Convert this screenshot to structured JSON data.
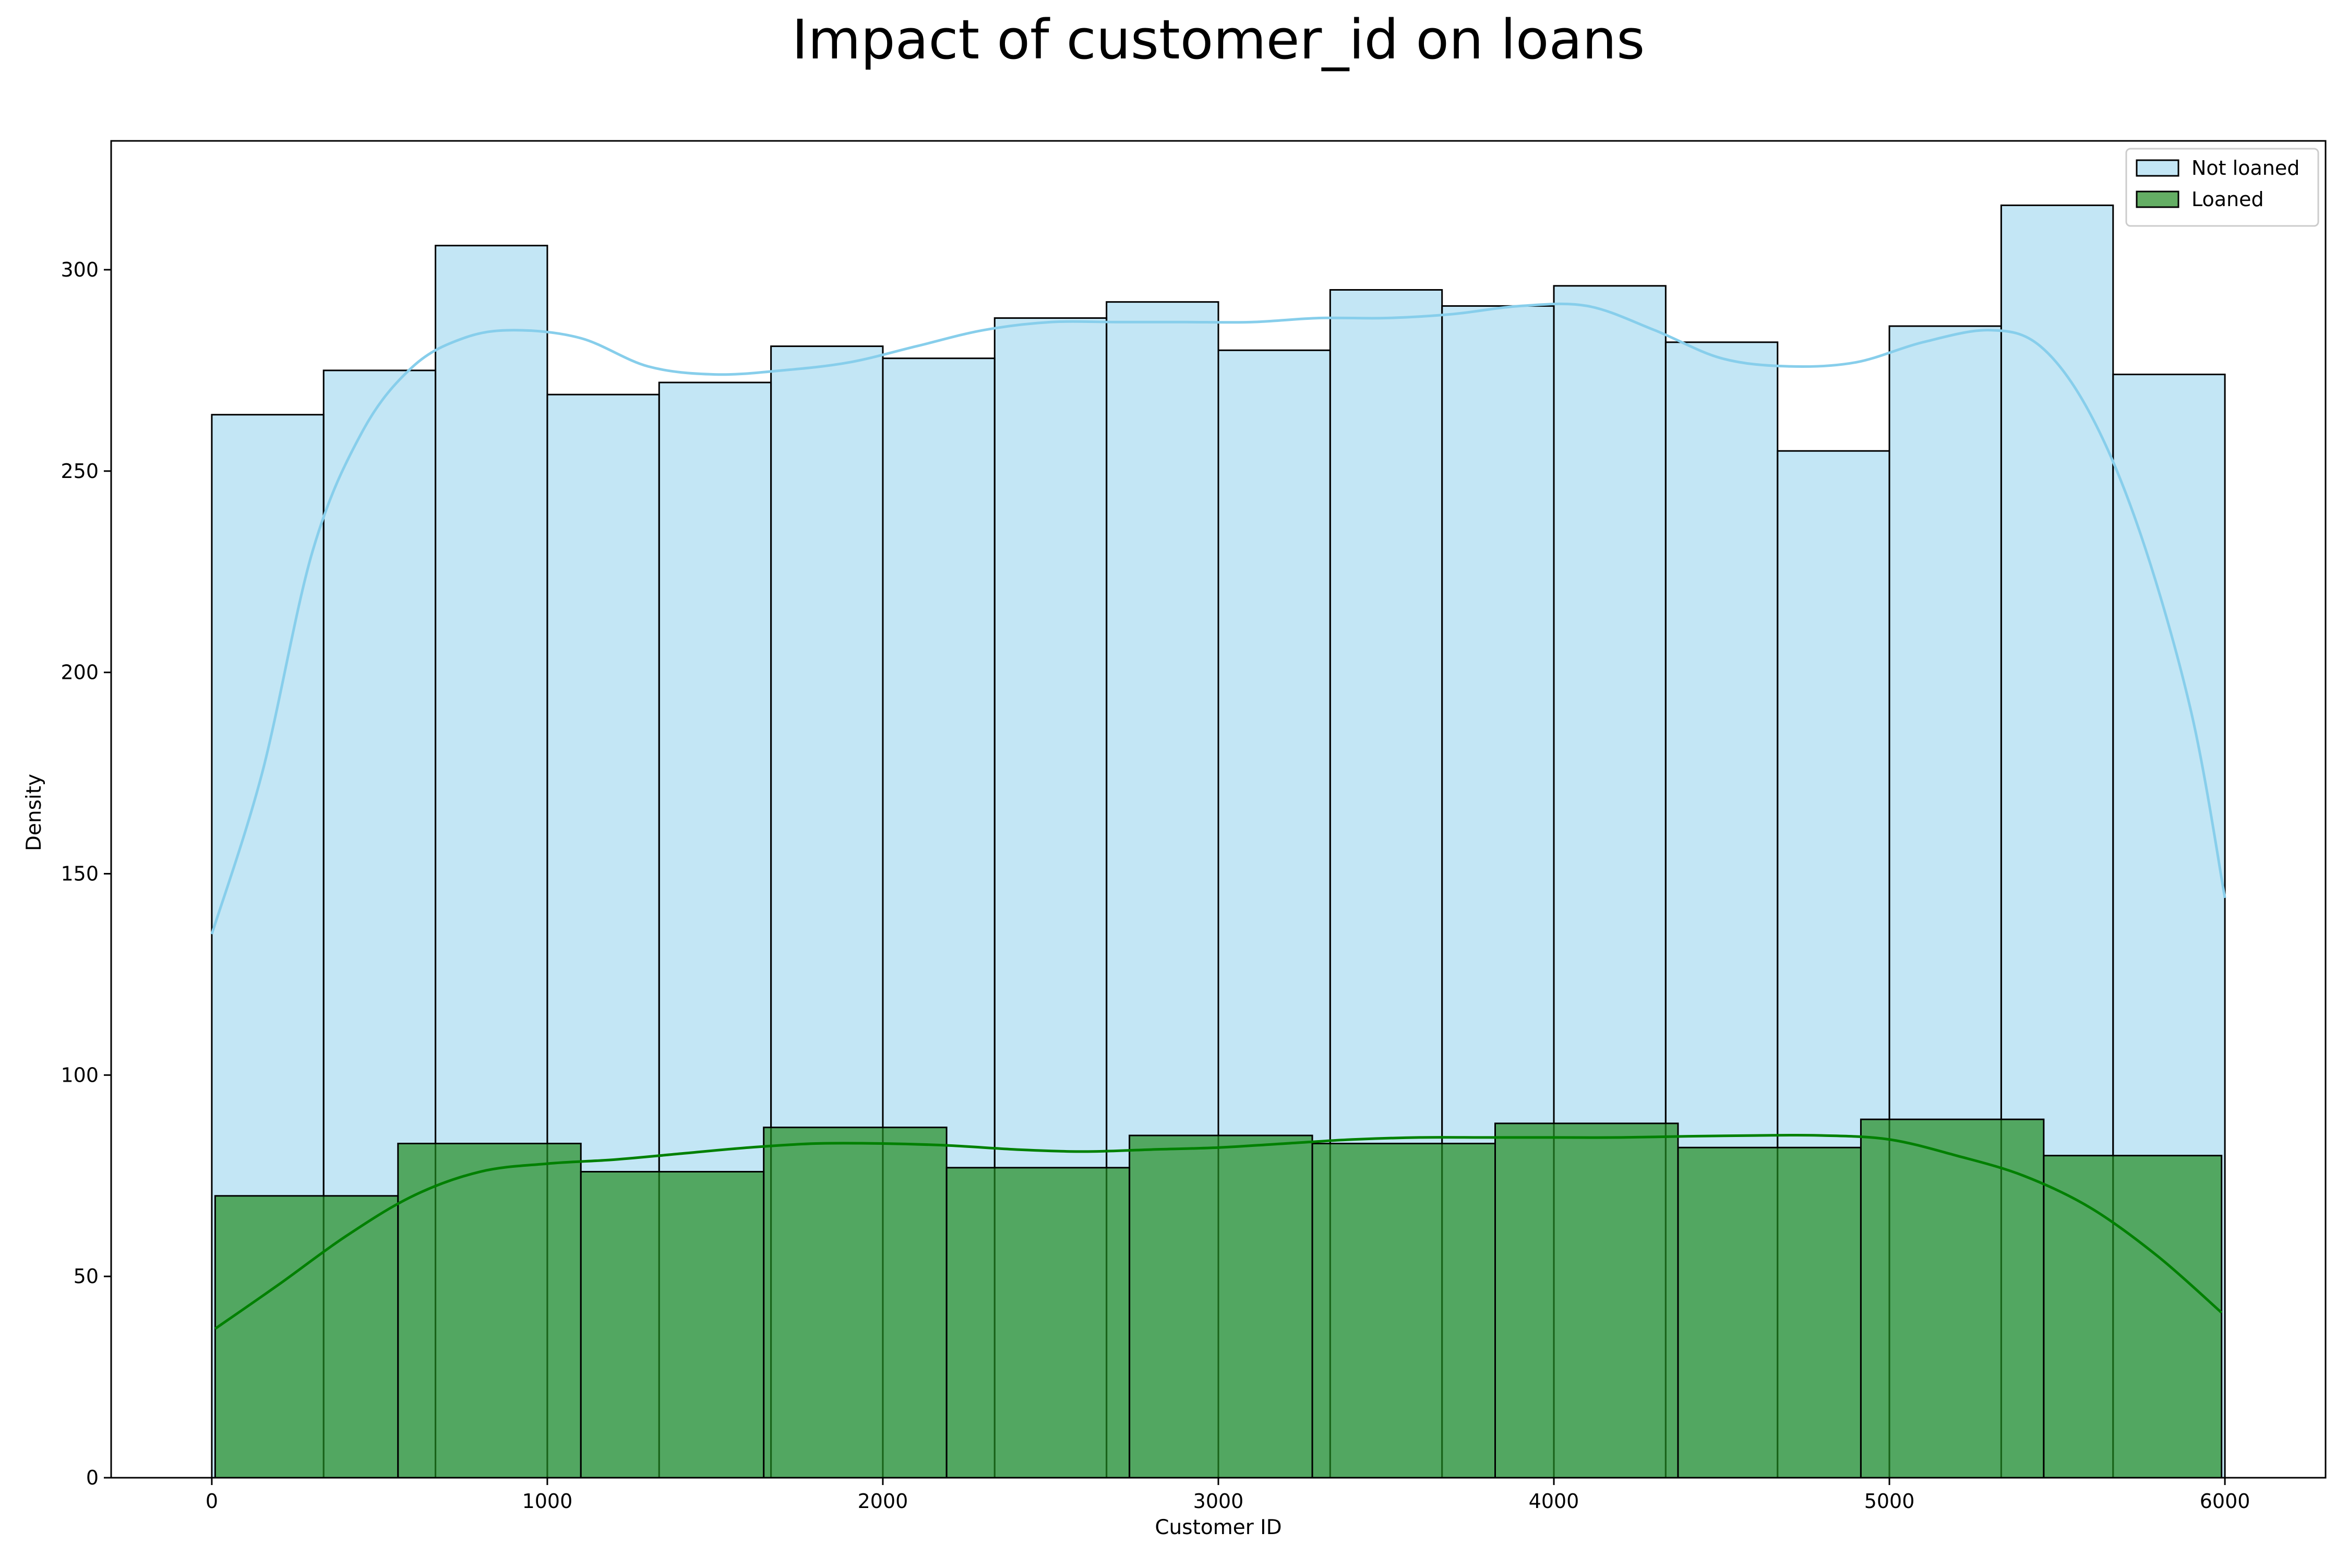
{
  "chart_data": {
    "type": "histogram",
    "title": "Impact of customer_id on loans",
    "xlabel": "Customer ID",
    "ylabel": "Density",
    "xlim": [
      -300,
      6300
    ],
    "ylim": [
      0,
      332
    ],
    "x_ticks": [
      0,
      1000,
      2000,
      3000,
      4000,
      5000,
      6000
    ],
    "y_ticks": [
      0,
      50,
      100,
      150,
      200,
      250,
      300
    ],
    "grid": false,
    "legend_position": "top-right",
    "series": [
      {
        "name": "Not loaned",
        "color": "#87ceeb",
        "line_color": "#87ceeb",
        "bin_edges": [
          0,
          333.3,
          666.7,
          1000,
          1333.3,
          1666.7,
          2000,
          2333.3,
          2666.7,
          3000,
          3333.3,
          3666.7,
          4000,
          4333.3,
          4666.7,
          5000,
          5333.3,
          5666.7,
          6000
        ],
        "values": [
          264,
          275,
          306,
          269,
          272,
          281,
          278,
          288,
          292,
          280,
          295,
          291,
          296,
          282,
          255,
          286,
          316,
          274
        ],
        "kde": [
          [
            0,
            135
          ],
          [
            150,
            175
          ],
          [
            300,
            230
          ],
          [
            450,
            260
          ],
          [
            600,
            276
          ],
          [
            750,
            283
          ],
          [
            900,
            285
          ],
          [
            1100,
            283
          ],
          [
            1300,
            276
          ],
          [
            1500,
            274
          ],
          [
            1700,
            275
          ],
          [
            1900,
            277
          ],
          [
            2100,
            281
          ],
          [
            2300,
            285
          ],
          [
            2500,
            287
          ],
          [
            2700,
            287
          ],
          [
            2900,
            287
          ],
          [
            3100,
            287
          ],
          [
            3300,
            288
          ],
          [
            3500,
            288
          ],
          [
            3700,
            289
          ],
          [
            3900,
            291
          ],
          [
            4100,
            291
          ],
          [
            4300,
            285
          ],
          [
            4500,
            278
          ],
          [
            4700,
            276
          ],
          [
            4900,
            277
          ],
          [
            5100,
            282
          ],
          [
            5300,
            285
          ],
          [
            5450,
            281
          ],
          [
            5600,
            264
          ],
          [
            5750,
            234
          ],
          [
            5900,
            190
          ],
          [
            6000,
            144
          ]
        ]
      },
      {
        "name": "Loaned",
        "color": "#228b22",
        "line_color": "#008000",
        "bin_edges": [
          10,
          555,
          1100,
          1645,
          2190,
          2735,
          3280,
          3825,
          4370,
          4915,
          5460,
          5990
        ],
        "values": [
          70,
          83,
          76,
          87,
          77,
          85,
          83,
          88,
          82,
          89,
          80
        ],
        "kde": [
          [
            10,
            37
          ],
          [
            200,
            48
          ],
          [
            400,
            60
          ],
          [
            600,
            70
          ],
          [
            800,
            76
          ],
          [
            1000,
            78
          ],
          [
            1200,
            79
          ],
          [
            1400,
            80.5
          ],
          [
            1600,
            82
          ],
          [
            1800,
            83
          ],
          [
            2000,
            83
          ],
          [
            2200,
            82.5
          ],
          [
            2400,
            81.5
          ],
          [
            2600,
            81
          ],
          [
            2800,
            81.5
          ],
          [
            3000,
            82
          ],
          [
            3200,
            83
          ],
          [
            3400,
            84
          ],
          [
            3600,
            84.5
          ],
          [
            3800,
            84.5
          ],
          [
            4000,
            84.5
          ],
          [
            4200,
            84.5
          ],
          [
            4400,
            84.8
          ],
          [
            4600,
            85
          ],
          [
            4800,
            85
          ],
          [
            5000,
            84
          ],
          [
            5200,
            80
          ],
          [
            5400,
            75
          ],
          [
            5600,
            67
          ],
          [
            5800,
            55
          ],
          [
            5990,
            41
          ]
        ]
      }
    ]
  }
}
